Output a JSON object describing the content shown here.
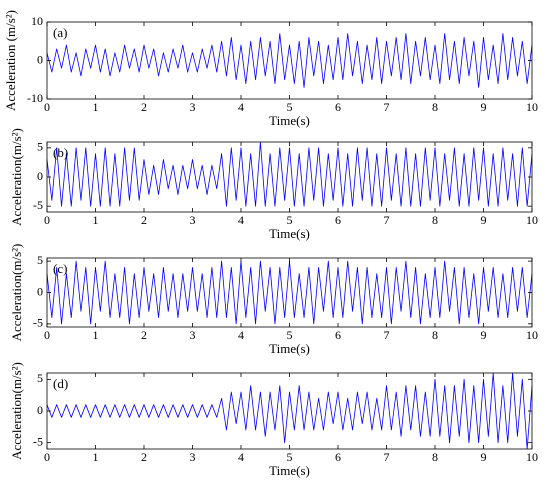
{
  "chart_data": [
    {
      "type": "line",
      "ylabel": "Acceleration (m/s²)",
      "xlabel": "Time(s)",
      "annotation": "(a)",
      "color": "#0000ff",
      "xlim": [
        0,
        10
      ],
      "xticks": [
        0,
        1,
        2,
        3,
        4,
        5,
        6,
        7,
        8,
        9,
        10
      ],
      "ylim": [
        -10,
        10
      ],
      "yticks": [
        -10,
        0,
        10
      ],
      "x": [
        0,
        0.1,
        0.2,
        0.3,
        0.4,
        0.5,
        0.6,
        0.7,
        0.8,
        0.9,
        1,
        1.1,
        1.2,
        1.3,
        1.4,
        1.5,
        1.6,
        1.7,
        1.8,
        1.9,
        2,
        2.1,
        2.2,
        2.3,
        2.4,
        2.5,
        2.6,
        2.7,
        2.8,
        2.9,
        3,
        3.1,
        3.2,
        3.3,
        3.4,
        3.5,
        3.6,
        3.7,
        3.8,
        3.9,
        4,
        4.1,
        4.2,
        4.3,
        4.4,
        4.5,
        4.6,
        4.7,
        4.8,
        4.9,
        5,
        5.1,
        5.2,
        5.3,
        5.4,
        5.5,
        5.6,
        5.7,
        5.8,
        5.9,
        6,
        6.1,
        6.2,
        6.3,
        6.4,
        6.5,
        6.6,
        6.7,
        6.8,
        6.9,
        7,
        7.1,
        7.2,
        7.3,
        7.4,
        7.5,
        7.6,
        7.7,
        7.8,
        7.9,
        8,
        8.1,
        8.2,
        8.3,
        8.4,
        8.5,
        8.6,
        8.7,
        8.8,
        8.9,
        9,
        9.1,
        9.2,
        9.3,
        9.4,
        9.5,
        9.6,
        9.7,
        9.8,
        9.9,
        10
      ],
      "values": [
        2,
        -3,
        3,
        -2,
        4,
        -3,
        2,
        -4,
        3,
        -2,
        4,
        -3,
        3,
        -4,
        2,
        -3,
        4,
        -2,
        3,
        -3,
        4,
        -2,
        3,
        -4,
        2,
        -3,
        3,
        -2,
        4,
        -3,
        2,
        -3,
        3,
        -2,
        4,
        -3,
        5,
        -4,
        6,
        -5,
        4,
        -6,
        5,
        -5,
        6,
        -4,
        5,
        -6,
        7,
        -5,
        4,
        -6,
        5,
        -7,
        6,
        -4,
        5,
        -6,
        4,
        -5,
        6,
        -5,
        7,
        -4,
        5,
        -6,
        4,
        -5,
        6,
        -6,
        5,
        -4,
        6,
        -5,
        7,
        -6,
        5,
        -4,
        6,
        -5,
        4,
        -6,
        7,
        -5,
        5,
        -6,
        6,
        -4,
        5,
        -7,
        6,
        -5,
        4,
        -6,
        7,
        -5,
        6,
        -4,
        5,
        -6,
        4
      ]
    },
    {
      "type": "line",
      "ylabel": "Acceleration(m/s²)",
      "xlabel": "Time(s)",
      "annotation": "(b)",
      "color": "#0000ff",
      "xlim": [
        0,
        10
      ],
      "xticks": [
        0,
        1,
        2,
        3,
        4,
        5,
        6,
        7,
        8,
        9,
        10
      ],
      "ylim": [
        -6,
        6
      ],
      "yticks": [
        -5,
        0,
        5
      ],
      "x": [
        0,
        0.1,
        0.2,
        0.3,
        0.4,
        0.5,
        0.6,
        0.7,
        0.8,
        0.9,
        1,
        1.1,
        1.2,
        1.3,
        1.4,
        1.5,
        1.6,
        1.7,
        1.8,
        1.9,
        2,
        2.1,
        2.2,
        2.3,
        2.4,
        2.5,
        2.6,
        2.7,
        2.8,
        2.9,
        3,
        3.1,
        3.2,
        3.3,
        3.4,
        3.5,
        3.6,
        3.7,
        3.8,
        3.9,
        4,
        4.1,
        4.2,
        4.3,
        4.4,
        4.5,
        4.6,
        4.7,
        4.8,
        4.9,
        5,
        5.1,
        5.2,
        5.3,
        5.4,
        5.5,
        5.6,
        5.7,
        5.8,
        5.9,
        6,
        6.1,
        6.2,
        6.3,
        6.4,
        6.5,
        6.6,
        6.7,
        6.8,
        6.9,
        7,
        7.1,
        7.2,
        7.3,
        7.4,
        7.5,
        7.6,
        7.7,
        7.8,
        7.9,
        8,
        8.1,
        8.2,
        8.3,
        8.4,
        8.5,
        8.6,
        8.7,
        8.8,
        8.9,
        9,
        9.1,
        9.2,
        9.3,
        9.4,
        9.5,
        9.6,
        9.7,
        9.8,
        9.9,
        10
      ],
      "values": [
        3,
        -4,
        5,
        -5,
        4,
        -5,
        5,
        -4,
        5,
        -5,
        4,
        -5,
        5,
        -5,
        4,
        -5,
        5,
        -4,
        5,
        -4,
        3,
        -3,
        2,
        -3,
        3,
        -2,
        2,
        -3,
        2,
        -2,
        3,
        -2,
        2,
        -3,
        2,
        -2,
        4,
        -5,
        5,
        -4,
        5,
        -5,
        4,
        -5,
        6,
        -5,
        4,
        -5,
        5,
        -4,
        5,
        -5,
        4,
        -5,
        5,
        -4,
        5,
        -5,
        4,
        -4,
        5,
        -5,
        4,
        -5,
        5,
        -4,
        5,
        -5,
        4,
        -5,
        5,
        -4,
        4,
        -5,
        5,
        -5,
        4,
        -5,
        5,
        -4,
        5,
        -5,
        4,
        -4,
        5,
        -5,
        4,
        -5,
        5,
        -4,
        5,
        -5,
        4,
        -5,
        5,
        -4,
        4,
        -5,
        5,
        -5,
        4
      ]
    },
    {
      "type": "line",
      "ylabel": "Acceleration(m/s²)",
      "xlabel": "Time(s)",
      "annotation": "(c)",
      "color": "#0000ff",
      "xlim": [
        0,
        10
      ],
      "xticks": [
        0,
        1,
        2,
        3,
        4,
        5,
        6,
        7,
        8,
        9,
        10
      ],
      "ylim": [
        -5.5,
        5.5
      ],
      "yticks": [
        -5,
        0,
        5
      ],
      "x": [
        0,
        0.1,
        0.2,
        0.3,
        0.4,
        0.5,
        0.6,
        0.7,
        0.8,
        0.9,
        1,
        1.1,
        1.2,
        1.3,
        1.4,
        1.5,
        1.6,
        1.7,
        1.8,
        1.9,
        2,
        2.1,
        2.2,
        2.3,
        2.4,
        2.5,
        2.6,
        2.7,
        2.8,
        2.9,
        3,
        3.1,
        3.2,
        3.3,
        3.4,
        3.5,
        3.6,
        3.7,
        3.8,
        3.9,
        4,
        4.1,
        4.2,
        4.3,
        4.4,
        4.5,
        4.6,
        4.7,
        4.8,
        4.9,
        5,
        5.1,
        5.2,
        5.3,
        5.4,
        5.5,
        5.6,
        5.7,
        5.8,
        5.9,
        6,
        6.1,
        6.2,
        6.3,
        6.4,
        6.5,
        6.6,
        6.7,
        6.8,
        6.9,
        7,
        7.1,
        7.2,
        7.3,
        7.4,
        7.5,
        7.6,
        7.7,
        7.8,
        7.9,
        8,
        8.1,
        8.2,
        8.3,
        8.4,
        8.5,
        8.6,
        8.7,
        8.8,
        8.9,
        9,
        9.1,
        9.2,
        9.3,
        9.4,
        9.5,
        9.6,
        9.7,
        9.8,
        9.9,
        10
      ],
      "values": [
        3,
        -4,
        4,
        -5,
        3,
        -4,
        5,
        -3,
        4,
        -5,
        4,
        -3,
        5,
        -4,
        3,
        -4,
        4,
        -5,
        3,
        -4,
        4,
        -3,
        3,
        -4,
        4,
        -3,
        3,
        -4,
        3,
        -3,
        4,
        -3,
        3,
        -4,
        4,
        -4,
        5,
        -4,
        4,
        -5,
        5,
        -4,
        4,
        -5,
        5,
        -3,
        4,
        -5,
        4,
        -4,
        5,
        -4,
        3,
        -4,
        4,
        -5,
        4,
        -3,
        5,
        -4,
        4,
        -4,
        5,
        -3,
        4,
        -5,
        4,
        -4,
        3,
        -4,
        4,
        -5,
        4,
        -3,
        5,
        -4,
        4,
        -5,
        3,
        -4,
        4,
        -4,
        5,
        -3,
        4,
        -5,
        4,
        -4,
        3,
        -5,
        4,
        -3,
        4,
        -4,
        3,
        -4,
        4,
        -3,
        4,
        -4,
        3
      ]
    },
    {
      "type": "line",
      "ylabel": "Acceleration(m/s²)",
      "xlabel": "Time(s)",
      "annotation": "(d)",
      "color": "#0000ff",
      "xlim": [
        0,
        10
      ],
      "xticks": [
        0,
        1,
        2,
        3,
        4,
        5,
        6,
        7,
        8,
        9,
        10
      ],
      "ylim": [
        -6,
        6
      ],
      "yticks": [
        -5,
        0,
        5
      ],
      "x": [
        0,
        0.1,
        0.2,
        0.3,
        0.4,
        0.5,
        0.6,
        0.7,
        0.8,
        0.9,
        1,
        1.1,
        1.2,
        1.3,
        1.4,
        1.5,
        1.6,
        1.7,
        1.8,
        1.9,
        2,
        2.1,
        2.2,
        2.3,
        2.4,
        2.5,
        2.6,
        2.7,
        2.8,
        2.9,
        3,
        3.1,
        3.2,
        3.3,
        3.4,
        3.5,
        3.6,
        3.7,
        3.8,
        3.9,
        4,
        4.1,
        4.2,
        4.3,
        4.4,
        4.5,
        4.6,
        4.7,
        4.8,
        4.9,
        5,
        5.1,
        5.2,
        5.3,
        5.4,
        5.5,
        5.6,
        5.7,
        5.8,
        5.9,
        6,
        6.1,
        6.2,
        6.3,
        6.4,
        6.5,
        6.6,
        6.7,
        6.8,
        6.9,
        7,
        7.1,
        7.2,
        7.3,
        7.4,
        7.5,
        7.6,
        7.7,
        7.8,
        7.9,
        8,
        8.1,
        8.2,
        8.3,
        8.4,
        8.5,
        8.6,
        8.7,
        8.8,
        8.9,
        9,
        9.1,
        9.2,
        9.3,
        9.4,
        9.5,
        9.6,
        9.7,
        9.8,
        9.9,
        10
      ],
      "values": [
        1,
        -1,
        1,
        -1,
        1,
        -1,
        1,
        -1,
        1,
        -1,
        1,
        -1,
        1,
        -1,
        1,
        -1,
        1,
        -1,
        1,
        -1,
        1,
        -1,
        1,
        -1,
        1,
        -1,
        1,
        -1,
        1,
        -1,
        1,
        -1,
        1,
        -1,
        1,
        -1,
        2,
        -3,
        3,
        -2,
        3,
        -3,
        4,
        -3,
        3,
        -4,
        3,
        -3,
        4,
        -5,
        3,
        -3,
        4,
        -3,
        3,
        -3,
        2,
        -3,
        3,
        -2,
        3,
        -3,
        2,
        -3,
        3,
        -2,
        3,
        -3,
        2,
        -3,
        4,
        -3,
        3,
        -4,
        4,
        -3,
        4,
        -4,
        3,
        -4,
        5,
        -4,
        4,
        -5,
        4,
        -4,
        5,
        -5,
        4,
        -5,
        5,
        -4,
        6,
        -5,
        4,
        -5,
        6,
        -4,
        5,
        -6,
        4
      ]
    }
  ]
}
